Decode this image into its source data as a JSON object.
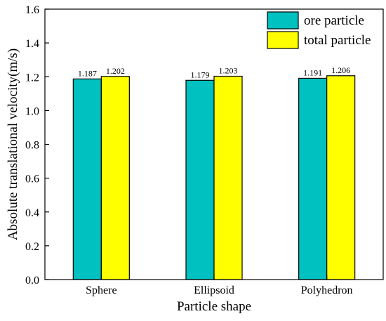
{
  "chart_data": {
    "type": "bar",
    "title": "",
    "xlabel": "Particle shape",
    "ylabel": "Absolute translational velocity(m/s)",
    "categories": [
      "Sphere",
      "Ellipsoid",
      "Polyhedron"
    ],
    "series": [
      {
        "name": "ore particle",
        "values": [
          1.187,
          1.179,
          1.191
        ],
        "labels": [
          "1.187",
          "1.179",
          "1.191"
        ],
        "color": "#00c0c0"
      },
      {
        "name": "total particle",
        "values": [
          1.202,
          1.203,
          1.206
        ],
        "labels": [
          "1.202",
          "1.203",
          "1.206"
        ],
        "color": "#ffff00"
      }
    ],
    "ylim": [
      0,
      1.6
    ],
    "yticks": [
      0.0,
      0.2,
      0.4,
      0.6,
      0.8,
      1.0,
      1.2,
      1.4,
      1.6
    ],
    "ytick_labels": [
      "0.0",
      "0.2",
      "0.4",
      "0.6",
      "0.8",
      "1.0",
      "1.2",
      "1.4",
      "1.6"
    ],
    "grid": false,
    "legend": "top-right"
  }
}
